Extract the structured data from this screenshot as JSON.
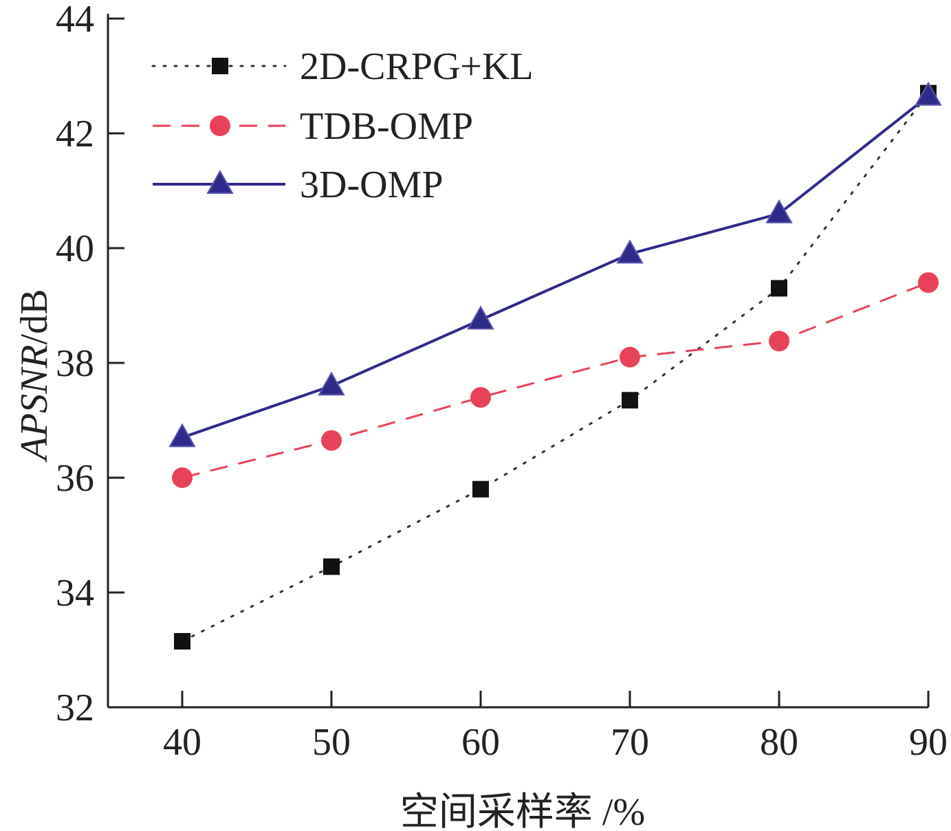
{
  "chart_data": {
    "type": "line",
    "xlabel": "空间采样率 /%",
    "ylabel_italic": "APSNR",
    "ylabel_unit": "/dB",
    "x": [
      40,
      50,
      60,
      70,
      80,
      90
    ],
    "xlim": [
      35,
      90
    ],
    "ylim": [
      32,
      44
    ],
    "x_ticks": [
      40,
      50,
      60,
      70,
      80,
      90
    ],
    "y_ticks": [
      32,
      34,
      36,
      38,
      40,
      42,
      44
    ],
    "grid": false,
    "legend_position": "top-left",
    "series": [
      {
        "name": "2D-CRPG+KL",
        "values": [
          33.15,
          34.45,
          35.8,
          37.35,
          39.3,
          42.7
        ],
        "color": "#333333",
        "marker": "square",
        "line_style": "dotted"
      },
      {
        "name": "TDB-OMP",
        "values": [
          36.0,
          36.65,
          37.4,
          38.1,
          38.38,
          39.4
        ],
        "color": "#e8425a",
        "marker": "circle",
        "line_style": "dashed"
      },
      {
        "name": "3D-OMP",
        "values": [
          36.7,
          37.6,
          38.75,
          39.9,
          40.6,
          42.65
        ],
        "color": "#2e2a8a",
        "marker": "triangle",
        "line_style": "solid"
      }
    ]
  }
}
